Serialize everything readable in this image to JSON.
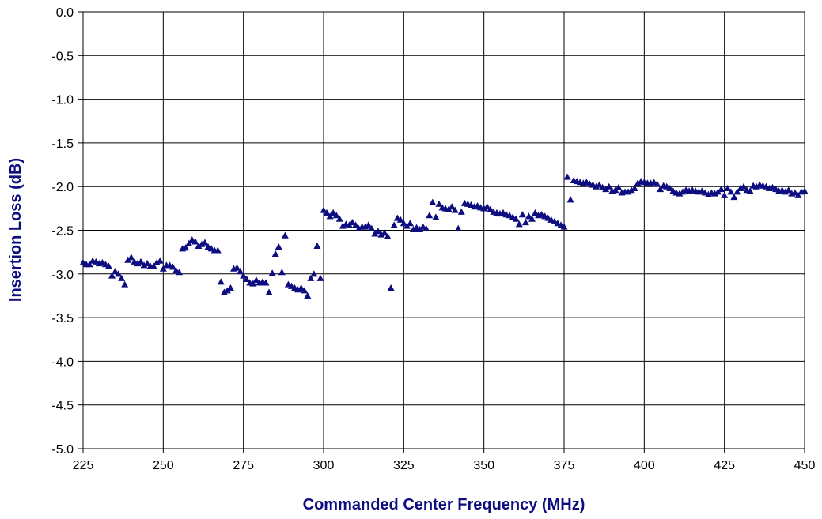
{
  "chart_data": {
    "type": "scatter",
    "title": "",
    "xlabel": "Commanded Center Frequency (MHz)",
    "ylabel": "Insertion Loss (dB)",
    "xlim": [
      225,
      450
    ],
    "ylim": [
      -5.0,
      0.0
    ],
    "x_ticks": [
      "225",
      "250",
      "275",
      "300",
      "325",
      "350",
      "375",
      "400",
      "425",
      "450"
    ],
    "y_ticks": [
      "0.0",
      "-0.5",
      "-1.0",
      "-1.5",
      "-2.0",
      "-2.5",
      "-3.0",
      "-3.5",
      "-4.0",
      "-4.5",
      "-5.0"
    ],
    "grid": true,
    "legend": "none",
    "marker": "triangle",
    "colors": {
      "marker": "#0d0d80",
      "axis_title": "#0d0d80",
      "grid": "#000000"
    },
    "series": [
      {
        "points": [
          [
            225.0,
            -2.87
          ],
          [
            226.0,
            -2.89
          ],
          [
            227.0,
            -2.89
          ],
          [
            228.0,
            -2.85
          ],
          [
            229.0,
            -2.86
          ],
          [
            230.0,
            -2.88
          ],
          [
            231.0,
            -2.87
          ],
          [
            232.0,
            -2.89
          ],
          [
            233.0,
            -2.91
          ],
          [
            234.0,
            -3.02
          ],
          [
            235.0,
            -2.97
          ],
          [
            236.0,
            -3.0
          ],
          [
            237.0,
            -3.05
          ],
          [
            238.0,
            -3.12
          ],
          [
            239.0,
            -2.84
          ],
          [
            240.0,
            -2.81
          ],
          [
            241.0,
            -2.86
          ],
          [
            242.0,
            -2.88
          ],
          [
            243.0,
            -2.86
          ],
          [
            244.0,
            -2.9
          ],
          [
            245.0,
            -2.88
          ],
          [
            246.0,
            -2.91
          ],
          [
            247.0,
            -2.91
          ],
          [
            248.0,
            -2.87
          ],
          [
            249.0,
            -2.85
          ],
          [
            250.0,
            -2.94
          ],
          [
            251.0,
            -2.9
          ],
          [
            252.0,
            -2.9
          ],
          [
            253.0,
            -2.92
          ],
          [
            254.0,
            -2.96
          ],
          [
            255.0,
            -2.98
          ],
          [
            256.0,
            -2.71
          ],
          [
            257.0,
            -2.7
          ],
          [
            258.0,
            -2.65
          ],
          [
            259.0,
            -2.61
          ],
          [
            260.0,
            -2.63
          ],
          [
            261.0,
            -2.68
          ],
          [
            262.0,
            -2.66
          ],
          [
            263.0,
            -2.64
          ],
          [
            264.0,
            -2.69
          ],
          [
            265.0,
            -2.71
          ],
          [
            266.0,
            -2.73
          ],
          [
            267.0,
            -2.73
          ],
          [
            268.0,
            -3.09
          ],
          [
            269.0,
            -3.21
          ],
          [
            270.0,
            -3.19
          ],
          [
            271.0,
            -3.16
          ],
          [
            272.0,
            -2.94
          ],
          [
            273.0,
            -2.93
          ],
          [
            274.0,
            -2.97
          ],
          [
            275.0,
            -3.02
          ],
          [
            276.0,
            -3.06
          ],
          [
            277.0,
            -3.1
          ],
          [
            278.0,
            -3.11
          ],
          [
            279.0,
            -3.07
          ],
          [
            280.0,
            -3.1
          ],
          [
            281.0,
            -3.09
          ],
          [
            282.0,
            -3.1
          ],
          [
            283.0,
            -3.21
          ],
          [
            284.0,
            -2.99
          ],
          [
            285.0,
            -2.77
          ],
          [
            286.0,
            -2.69
          ],
          [
            287.0,
            -2.98
          ],
          [
            288.0,
            -2.56
          ],
          [
            289.0,
            -3.12
          ],
          [
            290.0,
            -3.14
          ],
          [
            291.0,
            -3.16
          ],
          [
            292.0,
            -3.18
          ],
          [
            293.0,
            -3.16
          ],
          [
            294.0,
            -3.19
          ],
          [
            295.0,
            -3.25
          ],
          [
            296.0,
            -3.05
          ],
          [
            297.0,
            -3.0
          ],
          [
            298.0,
            -2.68
          ],
          [
            299.0,
            -3.05
          ],
          [
            300.0,
            -2.27
          ],
          [
            301.0,
            -2.3
          ],
          [
            302.0,
            -2.34
          ],
          [
            303.0,
            -2.3
          ],
          [
            304.0,
            -2.33
          ],
          [
            305.0,
            -2.37
          ],
          [
            306.0,
            -2.45
          ],
          [
            307.0,
            -2.43
          ],
          [
            308.0,
            -2.44
          ],
          [
            309.0,
            -2.41
          ],
          [
            310.0,
            -2.44
          ],
          [
            311.0,
            -2.48
          ],
          [
            312.0,
            -2.46
          ],
          [
            313.0,
            -2.46
          ],
          [
            314.0,
            -2.44
          ],
          [
            315.0,
            -2.48
          ],
          [
            316.0,
            -2.54
          ],
          [
            317.0,
            -2.51
          ],
          [
            318.0,
            -2.55
          ],
          [
            319.0,
            -2.53
          ],
          [
            320.0,
            -2.57
          ],
          [
            321.0,
            -3.16
          ],
          [
            322.0,
            -2.44
          ],
          [
            323.0,
            -2.36
          ],
          [
            324.0,
            -2.38
          ],
          [
            325.0,
            -2.42
          ],
          [
            326.0,
            -2.45
          ],
          [
            327.0,
            -2.42
          ],
          [
            328.0,
            -2.49
          ],
          [
            329.0,
            -2.47
          ],
          [
            330.0,
            -2.49
          ],
          [
            331.0,
            -2.46
          ],
          [
            332.0,
            -2.48
          ],
          [
            333.0,
            -2.33
          ],
          [
            334.0,
            -2.18
          ],
          [
            335.0,
            -2.35
          ],
          [
            336.0,
            -2.2
          ],
          [
            337.0,
            -2.24
          ],
          [
            338.0,
            -2.25
          ],
          [
            339.0,
            -2.26
          ],
          [
            340.0,
            -2.23
          ],
          [
            341.0,
            -2.27
          ],
          [
            342.0,
            -2.48
          ],
          [
            343.0,
            -2.29
          ],
          [
            344.0,
            -2.19
          ],
          [
            345.0,
            -2.2
          ],
          [
            346.0,
            -2.21
          ],
          [
            347.0,
            -2.23
          ],
          [
            348.0,
            -2.22
          ],
          [
            349.0,
            -2.24
          ],
          [
            350.0,
            -2.25
          ],
          [
            351.0,
            -2.23
          ],
          [
            352.0,
            -2.26
          ],
          [
            353.0,
            -2.29
          ],
          [
            354.0,
            -2.3
          ],
          [
            355.0,
            -2.31
          ],
          [
            356.0,
            -2.3
          ],
          [
            357.0,
            -2.32
          ],
          [
            358.0,
            -2.33
          ],
          [
            359.0,
            -2.35
          ],
          [
            360.0,
            -2.37
          ],
          [
            361.0,
            -2.43
          ],
          [
            362.0,
            -2.32
          ],
          [
            363.0,
            -2.41
          ],
          [
            364.0,
            -2.34
          ],
          [
            365.0,
            -2.37
          ],
          [
            366.0,
            -2.3
          ],
          [
            367.0,
            -2.33
          ],
          [
            368.0,
            -2.32
          ],
          [
            369.0,
            -2.34
          ],
          [
            370.0,
            -2.36
          ],
          [
            371.0,
            -2.38
          ],
          [
            372.0,
            -2.4
          ],
          [
            373.0,
            -2.42
          ],
          [
            374.0,
            -2.44
          ],
          [
            375.0,
            -2.46
          ],
          [
            376.0,
            -1.89
          ],
          [
            377.0,
            -2.15
          ],
          [
            378.0,
            -1.93
          ],
          [
            379.0,
            -1.94
          ],
          [
            380.0,
            -1.95
          ],
          [
            381.0,
            -1.96
          ],
          [
            382.0,
            -1.95
          ],
          [
            383.0,
            -1.97
          ],
          [
            384.0,
            -1.98
          ],
          [
            385.0,
            -2.0
          ],
          [
            386.0,
            -1.98
          ],
          [
            387.0,
            -2.01
          ],
          [
            388.0,
            -2.03
          ],
          [
            389.0,
            -2.0
          ],
          [
            390.0,
            -2.05
          ],
          [
            391.0,
            -2.04
          ],
          [
            392.0,
            -2.01
          ],
          [
            393.0,
            -2.07
          ],
          [
            394.0,
            -2.06
          ],
          [
            395.0,
            -2.06
          ],
          [
            396.0,
            -2.04
          ],
          [
            397.0,
            -2.02
          ],
          [
            398.0,
            -1.96
          ],
          [
            399.0,
            -1.94
          ],
          [
            400.0,
            -1.95
          ],
          [
            401.0,
            -1.96
          ],
          [
            402.0,
            -1.96
          ],
          [
            403.0,
            -1.95
          ],
          [
            404.0,
            -1.97
          ],
          [
            405.0,
            -2.03
          ],
          [
            406.0,
            -1.99
          ],
          [
            407.0,
            -2.0
          ],
          [
            408.0,
            -2.02
          ],
          [
            409.0,
            -2.05
          ],
          [
            410.0,
            -2.07
          ],
          [
            411.0,
            -2.08
          ],
          [
            412.0,
            -2.06
          ],
          [
            413.0,
            -2.04
          ],
          [
            414.0,
            -2.05
          ],
          [
            415.0,
            -2.04
          ],
          [
            416.0,
            -2.05
          ],
          [
            417.0,
            -2.06
          ],
          [
            418.0,
            -2.05
          ],
          [
            419.0,
            -2.07
          ],
          [
            420.0,
            -2.09
          ],
          [
            421.0,
            -2.07
          ],
          [
            422.0,
            -2.08
          ],
          [
            423.0,
            -2.06
          ],
          [
            424.0,
            -2.03
          ],
          [
            425.0,
            -2.1
          ],
          [
            426.0,
            -2.02
          ],
          [
            427.0,
            -2.06
          ],
          [
            428.0,
            -2.12
          ],
          [
            429.0,
            -2.06
          ],
          [
            430.0,
            -2.02
          ],
          [
            431.0,
            -2.0
          ],
          [
            432.0,
            -2.04
          ],
          [
            433.0,
            -2.05
          ],
          [
            434.0,
            -1.99
          ],
          [
            435.0,
            -2.0
          ],
          [
            436.0,
            -1.98
          ],
          [
            437.0,
            -1.99
          ],
          [
            438.0,
            -2.0
          ],
          [
            439.0,
            -2.02
          ],
          [
            440.0,
            -2.01
          ],
          [
            441.0,
            -2.03
          ],
          [
            442.0,
            -2.05
          ],
          [
            443.0,
            -2.04
          ],
          [
            444.0,
            -2.06
          ],
          [
            445.0,
            -2.04
          ],
          [
            446.0,
            -2.08
          ],
          [
            447.0,
            -2.07
          ],
          [
            448.0,
            -2.1
          ],
          [
            449.0,
            -2.06
          ],
          [
            450.0,
            -2.05
          ]
        ]
      }
    ]
  }
}
